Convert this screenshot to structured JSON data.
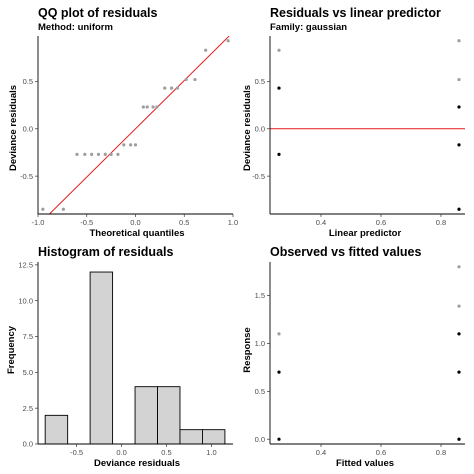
{
  "chart_data": [
    {
      "type": "scatter",
      "id": "qq",
      "title": "QQ plot of residuals",
      "subtitle": "Method: uniform",
      "xlabel": "Theoretical quantiles",
      "ylabel": "Deviance residuals",
      "xlim": [
        -1.0,
        1.0
      ],
      "ylim": [
        -0.9,
        0.98
      ],
      "xticks": [
        "-1.0",
        "-0.5",
        "0.0",
        "0.5",
        "1.0"
      ],
      "xtick_values": [
        -1.0,
        -0.5,
        0.0,
        0.5,
        1.0
      ],
      "yticks": [
        "-0.5",
        "0.0",
        "0.5"
      ],
      "ytick_values": [
        -0.5,
        0.0,
        0.5
      ],
      "points_color": "#9e9e9e",
      "line_color": "#e41a1c",
      "line": {
        "x": [
          -1.0,
          1.0
        ],
        "y": [
          -1.02,
          1.02
        ]
      },
      "x": [
        -0.95,
        -0.74,
        -0.6,
        -0.52,
        -0.45,
        -0.38,
        -0.31,
        -0.25,
        -0.18,
        -0.12,
        -0.05,
        0.0,
        0.08,
        0.12,
        0.18,
        0.22,
        0.3,
        0.37,
        0.43,
        0.52,
        0.61,
        0.72,
        0.95
      ],
      "y": [
        -0.85,
        -0.85,
        -0.27,
        -0.27,
        -0.27,
        -0.27,
        -0.27,
        -0.27,
        -0.27,
        -0.17,
        -0.17,
        -0.17,
        0.23,
        0.23,
        0.23,
        0.23,
        0.43,
        0.43,
        0.43,
        0.52,
        0.52,
        0.83,
        0.93
      ]
    },
    {
      "type": "scatter",
      "id": "resid",
      "title": "Residuals vs linear predictor",
      "subtitle": "Family: gaussian",
      "xlabel": "Linear predictor",
      "ylabel": "Deviance residuals",
      "xlim": [
        0.23,
        0.88
      ],
      "ylim": [
        -0.9,
        0.98
      ],
      "xticks": [
        "0.4",
        "0.6",
        "0.8"
      ],
      "xtick_values": [
        0.4,
        0.6,
        0.8
      ],
      "yticks": [
        "-0.5",
        "0.0",
        "0.5"
      ],
      "ytick_values": [
        -0.5,
        0.0,
        0.5
      ],
      "hline": 0.0,
      "line_color": "#e41a1c",
      "points": [
        {
          "x": 0.26,
          "y": 0.83,
          "color": "#9e9e9e"
        },
        {
          "x": 0.26,
          "y": 0.43,
          "color": "#000000"
        },
        {
          "x": 0.26,
          "y": -0.27,
          "color": "#000000"
        },
        {
          "x": 0.86,
          "y": 0.93,
          "color": "#9e9e9e"
        },
        {
          "x": 0.86,
          "y": 0.52,
          "color": "#9e9e9e"
        },
        {
          "x": 0.86,
          "y": 0.23,
          "color": "#000000"
        },
        {
          "x": 0.86,
          "y": -0.17,
          "color": "#000000"
        },
        {
          "x": 0.86,
          "y": -0.85,
          "color": "#9e9e9e"
        },
        {
          "x": 0.86,
          "y": -0.85,
          "color": "#000000"
        }
      ]
    },
    {
      "type": "bar",
      "id": "hist",
      "title": "Histogram of residuals",
      "xlabel": "Deviance residuals",
      "ylabel": "Frequency",
      "xlim": [
        -0.93,
        1.24
      ],
      "ylim": [
        0,
        12.7
      ],
      "xticks": [
        "-0.5",
        "0.0",
        "0.5",
        "1.0"
      ],
      "xtick_values": [
        -0.5,
        0.0,
        0.5,
        1.0
      ],
      "yticks": [
        "0.0",
        "2.5",
        "5.0",
        "7.5",
        "10.0",
        "12.5"
      ],
      "ytick_values": [
        0,
        2.5,
        5,
        7.5,
        10,
        12.5
      ],
      "bar_fill": "#d3d3d3",
      "bins": [
        {
          "x0": -0.85,
          "x1": -0.6,
          "count": 2
        },
        {
          "x0": -0.6,
          "x1": -0.35,
          "count": 0
        },
        {
          "x0": -0.35,
          "x1": -0.1,
          "count": 12
        },
        {
          "x0": -0.1,
          "x1": 0.15,
          "count": 0
        },
        {
          "x0": 0.15,
          "x1": 0.4,
          "count": 4
        },
        {
          "x0": 0.4,
          "x1": 0.65,
          "count": 4
        },
        {
          "x0": 0.65,
          "x1": 0.9,
          "count": 1
        },
        {
          "x0": 0.9,
          "x1": 1.15,
          "count": 1
        }
      ]
    },
    {
      "type": "scatter",
      "id": "obs",
      "title": "Observed vs fitted values",
      "xlabel": "Fitted values",
      "ylabel": "Response",
      "xlim": [
        0.23,
        0.88
      ],
      "ylim": [
        -0.05,
        1.85
      ],
      "xticks": [
        "0.4",
        "0.6",
        "0.8"
      ],
      "xtick_values": [
        0.4,
        0.6,
        0.8
      ],
      "yticks": [
        "0.0",
        "0.5",
        "1.0",
        "1.5"
      ],
      "ytick_values": [
        0,
        0.5,
        1.0,
        1.5
      ],
      "points": [
        {
          "x": 0.26,
          "y": 1.1,
          "color": "#9e9e9e"
        },
        {
          "x": 0.26,
          "y": 0.7,
          "color": "#000000"
        },
        {
          "x": 0.26,
          "y": 0.0,
          "color": "#000000"
        },
        {
          "x": 0.86,
          "y": 1.8,
          "color": "#9e9e9e"
        },
        {
          "x": 0.86,
          "y": 1.39,
          "color": "#9e9e9e"
        },
        {
          "x": 0.86,
          "y": 1.1,
          "color": "#000000"
        },
        {
          "x": 0.86,
          "y": 0.7,
          "color": "#000000"
        },
        {
          "x": 0.86,
          "y": 0.0,
          "color": "#9e9e9e"
        },
        {
          "x": 0.86,
          "y": 0.0,
          "color": "#000000"
        }
      ]
    }
  ]
}
